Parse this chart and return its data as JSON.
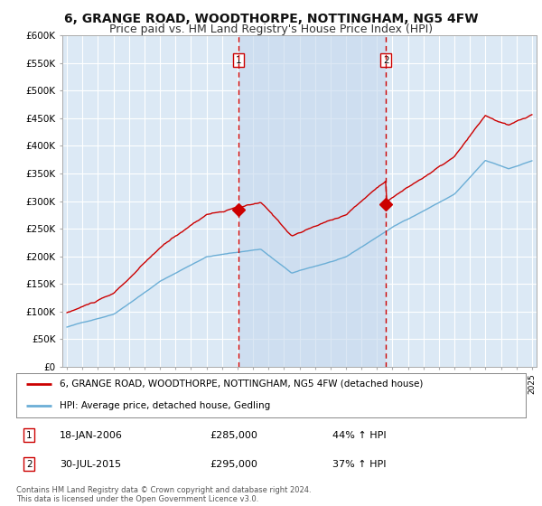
{
  "title": "6, GRANGE ROAD, WOODTHORPE, NOTTINGHAM, NG5 4FW",
  "subtitle": "Price paid vs. HM Land Registry's House Price Index (HPI)",
  "background_color": "#ffffff",
  "plot_bg_color": "#dce9f5",
  "grid_color": "#ffffff",
  "shade_color": "#c5d8ee",
  "ylim": [
    0,
    600000
  ],
  "yticks": [
    0,
    50000,
    100000,
    150000,
    200000,
    250000,
    300000,
    350000,
    400000,
    450000,
    500000,
    550000,
    600000
  ],
  "ytick_labels": [
    "£0",
    "£50K",
    "£100K",
    "£150K",
    "£200K",
    "£250K",
    "£300K",
    "£350K",
    "£400K",
    "£450K",
    "£500K",
    "£550K",
    "£600K"
  ],
  "sale1_date_num": 2006.05,
  "sale1_price": 285000,
  "sale2_date_num": 2015.58,
  "sale2_price": 295000,
  "hpi_line_color": "#6baed6",
  "price_line_color": "#cc0000",
  "vline_color": "#cc0000",
  "legend_label_price": "6, GRANGE ROAD, WOODTHORPE, NOTTINGHAM, NG5 4FW (detached house)",
  "legend_label_hpi": "HPI: Average price, detached house, Gedling",
  "table_entries": [
    {
      "num": "1",
      "date": "18-JAN-2006",
      "price": "£285,000",
      "hpi": "44% ↑ HPI"
    },
    {
      "num": "2",
      "date": "30-JUL-2015",
      "price": "£295,000",
      "hpi": "37% ↑ HPI"
    }
  ],
  "footnote": "Contains HM Land Registry data © Crown copyright and database right 2024.\nThis data is licensed under the Open Government Licence v3.0.",
  "title_fontsize": 10,
  "subtitle_fontsize": 9
}
